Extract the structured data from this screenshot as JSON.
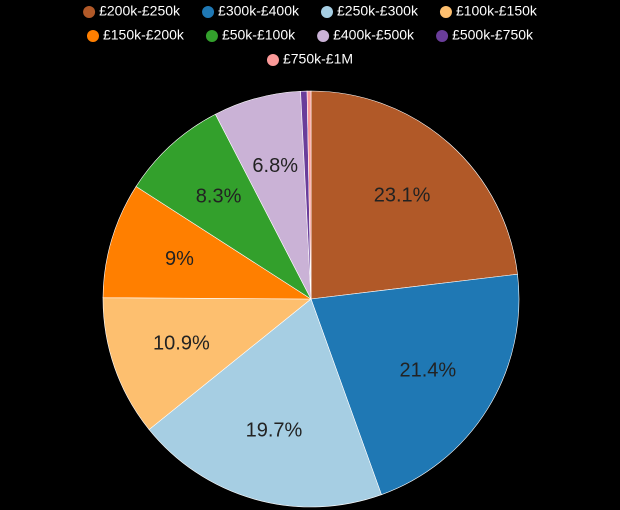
{
  "chart_data": {
    "type": "pie",
    "categories": [
      "£200k-£250k",
      "£300k-£400k",
      "£250k-£300k",
      "£100k-£150k",
      "£150k-£200k",
      "£50k-£100k",
      "£400k-£500k",
      "£500k-£750k",
      "£750k-£1M"
    ],
    "values": [
      23.1,
      21.4,
      19.7,
      10.9,
      9,
      8.3,
      6.8,
      0.5,
      0.3
    ],
    "value_labels": [
      "23.1%",
      "21.4%",
      "19.7%",
      "10.9%",
      "9%",
      "8.3%",
      "6.8%",
      null,
      null
    ],
    "colors": [
      "#b15928",
      "#1f78b4",
      "#a6cee3",
      "#fdbf6f",
      "#ff7f00",
      "#33a02c",
      "#cab2d6",
      "#6a3d9a",
      "#fb9a99"
    ]
  }
}
